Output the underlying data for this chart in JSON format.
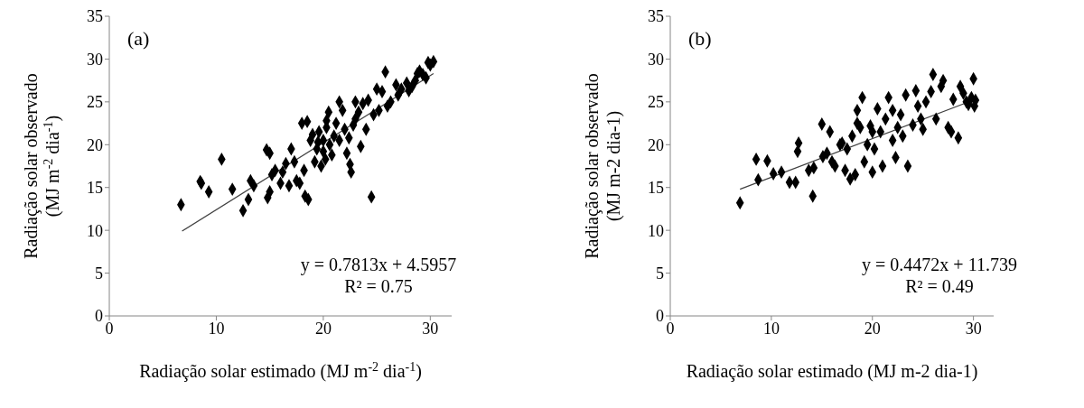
{
  "chart_data": [
    {
      "type": "scatter",
      "xlabel": "Radiação solar  estimado (MJ m$^{-2}$ dia$^{-1}$)",
      "ylabel": "Radiação solar observado\n(MJ m$^{-2}$ dia$^{-1}$)",
      "xlim": [
        0,
        32
      ],
      "xticks": [
        0,
        10,
        20,
        30
      ],
      "ylim": [
        0,
        35
      ],
      "yticks": [
        0,
        5,
        10,
        15,
        20,
        25,
        30,
        35
      ],
      "grid": false,
      "marker": "diamond",
      "annotations": [
        "(a)",
        "y = 0.7813x + 4.5957",
        "R² = 0.75"
      ],
      "series": [
        {
          "color": "#000000",
          "x": [
            6.7,
            8.5,
            8.6,
            9.3,
            10.5,
            11.5,
            12.5,
            13,
            13.2,
            13.5,
            14.7,
            15,
            15,
            14.8,
            15.2,
            15.5,
            16,
            16.2,
            16.5,
            16.8,
            17,
            17.3,
            17.5,
            17.8,
            18,
            18.2,
            18.3,
            18.5,
            18.6,
            18.8,
            19,
            19.2,
            19.4,
            19.6,
            19.8,
            20,
            20,
            20.2,
            20.3,
            20.5,
            20.6,
            20.8,
            21,
            21.2,
            21.5,
            21.8,
            22,
            22.2,
            22.4,
            22.5,
            22.6,
            22.8,
            23,
            23.3,
            23.5,
            23.7,
            24,
            24.2,
            24.5,
            24.7,
            25,
            25.2,
            25.5,
            25.8,
            26,
            26.3,
            26.8,
            27,
            27.3,
            27.8,
            28,
            28.3,
            28.6,
            28.8,
            29,
            29.3,
            29.6,
            29.8,
            30,
            30.3,
            20.3,
            19.5,
            21.5,
            23
          ],
          "values": [
            13,
            15.7,
            15.5,
            14.5,
            18.3,
            14.8,
            12.3,
            13.6,
            15.8,
            15.2,
            19.4,
            19,
            14.5,
            13.8,
            16.5,
            17,
            15.5,
            16.8,
            17.8,
            15.2,
            19.5,
            18,
            15.8,
            15.5,
            22.5,
            17,
            14,
            22.7,
            13.6,
            20.5,
            21.2,
            18,
            19.5,
            21.5,
            17.5,
            19.2,
            20.5,
            18.3,
            22,
            23.8,
            20,
            18.8,
            21,
            22.5,
            20.5,
            24,
            21.8,
            19,
            20.8,
            17.7,
            16.8,
            22.3,
            25,
            23.8,
            19.8,
            24.8,
            21.8,
            25.2,
            13.9,
            23.5,
            26.5,
            24,
            26.2,
            28.5,
            24.5,
            25,
            27,
            25.8,
            26.5,
            27.2,
            26.3,
            26.8,
            27.5,
            28.3,
            28.6,
            28.2,
            27.8,
            29.6,
            29.3,
            29.7,
            22.8,
            20.3,
            25,
            23
          ]
        },
        {
          "type": "line",
          "color": "#404040",
          "marker": "none",
          "x": [
            6.8,
            30.3
          ],
          "values": [
            9.9,
            28.3
          ]
        }
      ]
    },
    {
      "type": "scatter",
      "xlabel": "Radiação solar estimado (MJ m-2 dia-1)",
      "ylabel": "Radiação solar observado\n(MJ m-2 dia-1)",
      "xlim": [
        0,
        32
      ],
      "xticks": [
        0,
        10,
        20,
        30
      ],
      "ylim": [
        0,
        35
      ],
      "yticks": [
        0,
        5,
        10,
        15,
        20,
        25,
        30,
        35
      ],
      "grid": false,
      "marker": "diamond",
      "annotations": [
        "(b)",
        "y = 0.4472x + 11.739",
        "R² = 0.49"
      ],
      "series": [
        {
          "color": "#000000",
          "x": [
            6.9,
            8.5,
            8.7,
            9.6,
            10.2,
            11,
            11.8,
            12.4,
            12.6,
            12.7,
            13.7,
            14.1,
            14.2,
            15,
            15.1,
            15.5,
            15.8,
            16,
            16.3,
            16.8,
            17,
            17.3,
            17.5,
            17.8,
            18,
            18.3,
            18.5,
            18.8,
            19,
            19.2,
            19.5,
            19.8,
            20,
            20.2,
            20.5,
            20.8,
            21,
            21.3,
            21.6,
            22,
            22.3,
            22.5,
            22.8,
            23,
            23.3,
            23.5,
            24,
            24.3,
            24.8,
            25,
            25.3,
            25.8,
            26,
            26.3,
            26.8,
            27,
            27.5,
            27.8,
            28,
            28.5,
            28.7,
            29,
            29.3,
            29.5,
            29.8,
            30,
            30.1,
            30.2,
            20,
            18.5,
            22,
            24.5
          ],
          "values": [
            13.2,
            18.3,
            15.9,
            18.1,
            16.6,
            16.8,
            15.6,
            15.6,
            19.2,
            20.2,
            17,
            14,
            17.3,
            22.4,
            18.6,
            19,
            21.5,
            18,
            17.5,
            20,
            20.2,
            17,
            19.5,
            16,
            21,
            16.5,
            24,
            22,
            25.5,
            18,
            20,
            22.2,
            16.8,
            19.5,
            24.2,
            21.5,
            17.5,
            23,
            25.5,
            20.5,
            18.5,
            22,
            23.5,
            21,
            25.8,
            17.5,
            22.3,
            26.3,
            23,
            21.8,
            25,
            26.2,
            28.2,
            23,
            26.8,
            27.5,
            22,
            21.5,
            25.3,
            20.8,
            26.8,
            26,
            25,
            24.7,
            25.5,
            27.7,
            24.5,
            25.2,
            21.5,
            22.5,
            24,
            24.5
          ]
        },
        {
          "type": "line",
          "color": "#404040",
          "marker": "none",
          "x": [
            6.9,
            30.2
          ],
          "values": [
            14.8,
            25.3
          ]
        }
      ]
    }
  ]
}
